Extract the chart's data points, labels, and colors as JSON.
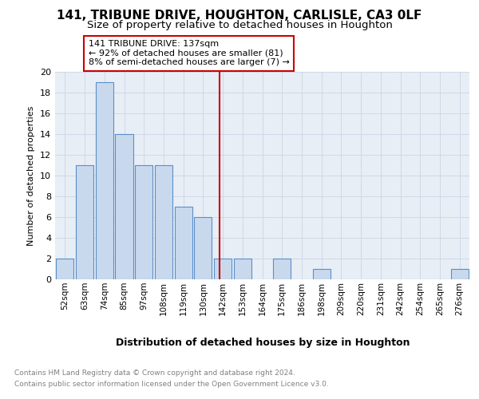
{
  "title": "141, TRIBUNE DRIVE, HOUGHTON, CARLISLE, CA3 0LF",
  "subtitle": "Size of property relative to detached houses in Houghton",
  "xlabel": "Distribution of detached houses by size in Houghton",
  "ylabel": "Number of detached properties",
  "categories": [
    "52sqm",
    "63sqm",
    "74sqm",
    "85sqm",
    "97sqm",
    "108sqm",
    "119sqm",
    "130sqm",
    "142sqm",
    "153sqm",
    "164sqm",
    "175sqm",
    "186sqm",
    "198sqm",
    "209sqm",
    "220sqm",
    "231sqm",
    "242sqm",
    "254sqm",
    "265sqm",
    "276sqm"
  ],
  "values": [
    2,
    11,
    19,
    14,
    11,
    11,
    7,
    6,
    2,
    2,
    0,
    2,
    0,
    1,
    0,
    0,
    0,
    0,
    0,
    0,
    1
  ],
  "bar_color": "#c9d9ed",
  "bar_edge_color": "#5b8fc9",
  "vline_x": 7.85,
  "vline_color": "#cc0000",
  "annotation_text": "141 TRIBUNE DRIVE: 137sqm\n← 92% of detached houses are smaller (81)\n8% of semi-detached houses are larger (7) →",
  "annotation_box_color": "#cc0000",
  "ylim": [
    0,
    20
  ],
  "yticks": [
    0,
    2,
    4,
    6,
    8,
    10,
    12,
    14,
    16,
    18,
    20
  ],
  "grid_color": "#d0d8e8",
  "footnote1": "Contains HM Land Registry data © Crown copyright and database right 2024.",
  "footnote2": "Contains public sector information licensed under the Open Government Licence v3.0.",
  "background_color": "#e8eef5",
  "title_fontsize": 11,
  "subtitle_fontsize": 9.5
}
